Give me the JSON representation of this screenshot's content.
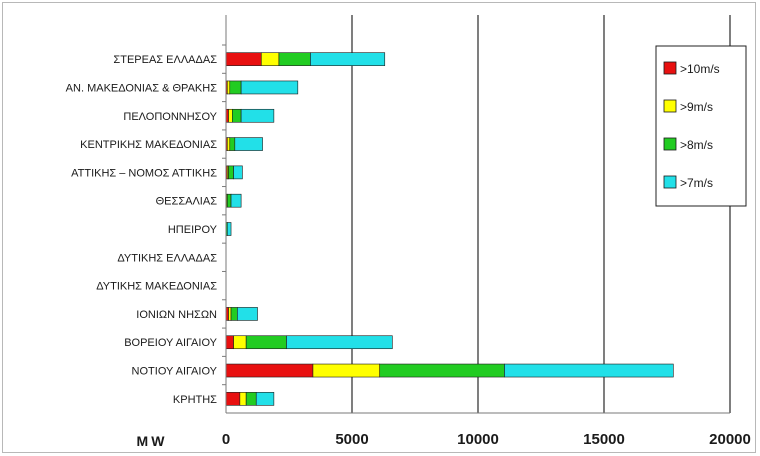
{
  "chart_data": {
    "type": "bar",
    "orientation": "horizontal",
    "stacked": true,
    "title": "",
    "xlabel": "MW",
    "ylabel": "",
    "xlim": [
      0,
      20000
    ],
    "xticks": [
      0,
      5000,
      10000,
      15000,
      20000
    ],
    "grid": true,
    "legend_position": "right",
    "categories": [
      "ΣΤΕΡΕΑΣ ΕΛΛΑΔΑΣ",
      "ΑΝ. ΜΑΚΕΔΟΝΙΑΣ & ΘΡΑΚΗΣ",
      "ΠΕΛΟΠΟΝΝΗΣΟΥ",
      "ΚΕΝΤΡΙΚΗΣ ΜΑΚΕΔΟΝΙΑΣ",
      "ΑΤΤΙΚΗΣ – ΝΟΜΟΣ ΑΤΤΙΚΗΣ",
      "ΘΕΣΣΑΛΙΑΣ",
      "ΗΠΕΙΡΟΥ",
      "ΔΥΤΙΚΗΣ ΕΛΛΑΔΑΣ",
      "ΔΥΤΙΚΗΣ ΜΑΚΕΔΟΝΙΑΣ",
      "ΙΟΝΙΩΝ ΝΗΣΩΝ",
      "ΒΟΡΕΙΟΥ ΑΙΓΑΙΟΥ",
      "ΝΟΤΙΟΥ ΑΙΓΑΙΟΥ",
      "ΚΡΗΤΗΣ"
    ],
    "series": [
      {
        "name": ">10m/s",
        "color": "#e81010",
        "values": [
          1400,
          50,
          100,
          50,
          50,
          20,
          0,
          0,
          0,
          100,
          300,
          3450,
          550
        ]
      },
      {
        "name": ">9m/s",
        "color": "#ffff00",
        "values": [
          700,
          100,
          150,
          100,
          50,
          30,
          0,
          0,
          0,
          100,
          500,
          2650,
          250
        ]
      },
      {
        "name": ">8m/s",
        "color": "#22cc22",
        "values": [
          1250,
          450,
          350,
          200,
          200,
          150,
          50,
          0,
          0,
          250,
          1600,
          4950,
          400
        ]
      },
      {
        "name": ">7m/s",
        "color": "#22e0e8",
        "values": [
          2950,
          2250,
          1300,
          1100,
          350,
          400,
          150,
          0,
          0,
          800,
          4200,
          6700,
          700
        ]
      }
    ]
  }
}
